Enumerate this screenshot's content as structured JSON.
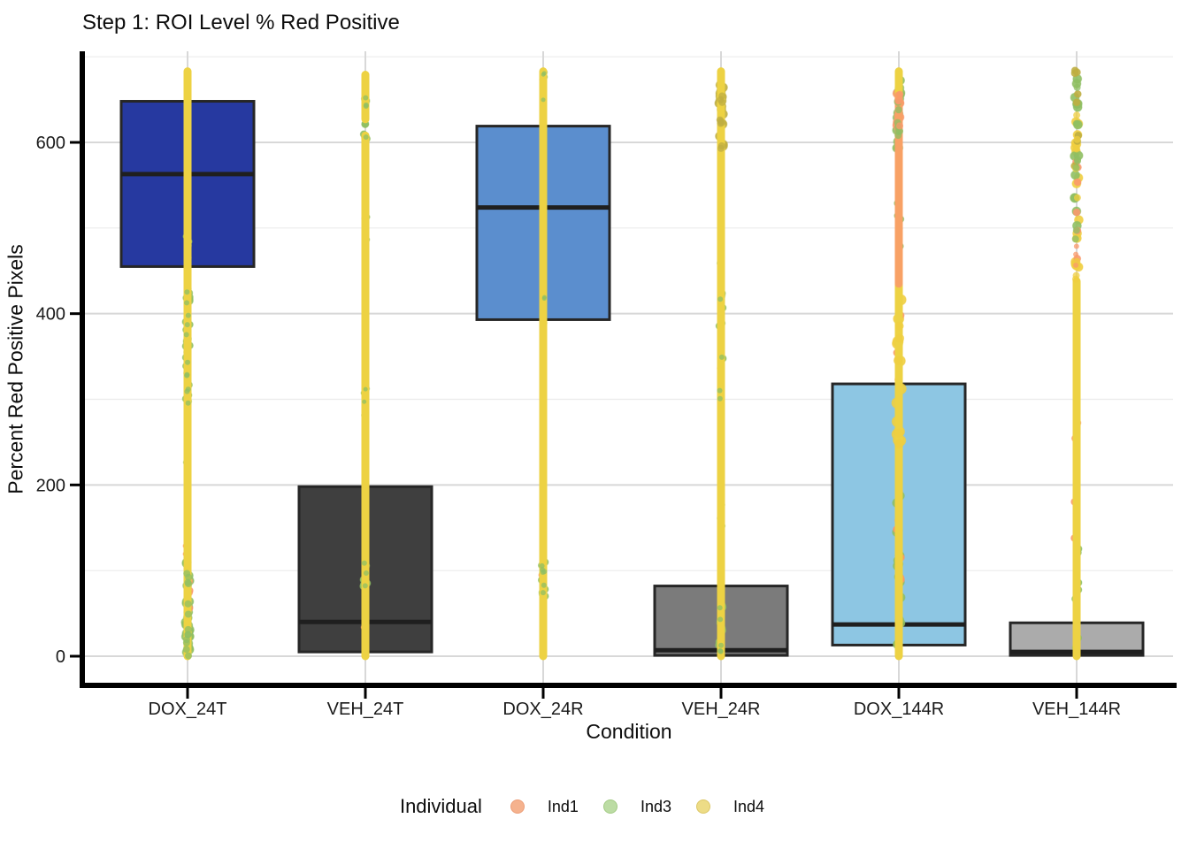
{
  "window": {
    "title": "Step 1: ROI Level % Red Positive"
  },
  "chart_data": {
    "type": "boxplot_jitter",
    "title": "Step 1: ROI Level % Red Positive",
    "xlabel": "Condition",
    "ylabel": "Percent Red Positive Pixels",
    "categories": [
      "DOX_24T",
      "VEH_24T",
      "DOX_24R",
      "VEH_24R",
      "DOX_144R",
      "VEH_144R"
    ],
    "y_ticks_major": [
      0,
      200,
      400,
      600
    ],
    "y_ticks_minor": [
      100,
      300,
      500,
      700
    ],
    "ylim": [
      0,
      706
    ],
    "grid": true,
    "boxes": [
      {
        "category": "DOX_24T",
        "q1": 455,
        "median": 563,
        "q3": 648,
        "fill": "#2639A0"
      },
      {
        "category": "VEH_24T",
        "q1": 5,
        "median": 40,
        "q3": 198,
        "fill": "#3F3F3F"
      },
      {
        "category": "DOX_24R",
        "q1": 393,
        "median": 524,
        "q3": 619,
        "fill": "#5B8ECE"
      },
      {
        "category": "VEH_24R",
        "q1": 1,
        "median": 7,
        "q3": 82,
        "fill": "#7B7B7B"
      },
      {
        "category": "DOX_144R",
        "q1": 13,
        "median": 37,
        "q3": 318,
        "fill": "#8DC6E3"
      },
      {
        "category": "VEH_144R",
        "q1": 1,
        "median": 5,
        "q3": 39,
        "fill": "#ABABAB"
      }
    ],
    "point_colors": {
      "yellow": "#EDD243",
      "yellow2": "#EFCE3F",
      "green": "#8FBF63",
      "orange": "#F9996B",
      "olive": "#BFAE41"
    },
    "jitter": {
      "strip_width": 9,
      "point_range": [
        0,
        683
      ],
      "categories": [
        {
          "name": "DOX_24T",
          "segments": [
            {
              "lo": 0,
              "hi": 683,
              "c": "yellow"
            }
          ],
          "extra": [
            {
              "n": 22,
              "lo": 295,
              "hi": 430,
              "c": "green",
              "r": 4
            },
            {
              "n": 16,
              "lo": 0,
              "hi": 50,
              "c": "green",
              "r": 5
            },
            {
              "n": 10,
              "lo": 50,
              "hi": 110,
              "c": "green",
              "r": 5
            },
            {
              "n": 5,
              "lo": 55,
              "hi": 105,
              "c": "orange",
              "r": 4
            },
            {
              "n": 3,
              "lo": 115,
              "hi": 130,
              "c": "orange",
              "r": 3
            },
            {
              "n": 6,
              "lo": 440,
              "hi": 560,
              "c": "green",
              "r": 3
            },
            {
              "n": 4,
              "lo": 210,
              "hi": 240,
              "c": "green",
              "r": 3
            }
          ]
        },
        {
          "name": "VEH_24T",
          "segments": [
            {
              "lo": 0,
              "hi": 608,
              "c": "yellow"
            },
            {
              "lo": 627,
              "hi": 679,
              "c": "yellow"
            }
          ],
          "extra": [
            {
              "n": 8,
              "lo": 600,
              "hi": 655,
              "c": "green",
              "r": 4
            },
            {
              "n": 6,
              "lo": 75,
              "hi": 110,
              "c": "green",
              "r": 4
            },
            {
              "n": 3,
              "lo": 270,
              "hi": 330,
              "c": "green",
              "r": 3
            },
            {
              "n": 2,
              "lo": 25,
              "hi": 45,
              "c": "orange",
              "r": 3
            },
            {
              "n": 3,
              "lo": 440,
              "hi": 520,
              "c": "green",
              "r": 3
            }
          ]
        },
        {
          "name": "DOX_24R",
          "segments": [
            {
              "lo": 0,
              "hi": 683,
              "c": "yellow"
            }
          ],
          "extra": [
            {
              "n": 12,
              "lo": 70,
              "hi": 115,
              "c": "green",
              "r": 4
            },
            {
              "n": 5,
              "lo": 648,
              "hi": 683,
              "c": "green",
              "r": 3
            },
            {
              "n": 4,
              "lo": 380,
              "hi": 430,
              "c": "green",
              "r": 3
            },
            {
              "n": 2,
              "lo": 88,
              "hi": 100,
              "c": "orange",
              "r": 3
            }
          ]
        },
        {
          "name": "VEH_24R",
          "segments": [
            {
              "lo": 0,
              "hi": 683,
              "c": "yellow"
            }
          ],
          "extra": [
            {
              "n": 18,
              "lo": 585,
              "hi": 683,
              "c": "olive",
              "r": 5
            },
            {
              "n": 7,
              "lo": 300,
              "hi": 460,
              "c": "green",
              "r": 4
            },
            {
              "n": 9,
              "lo": 0,
              "hi": 60,
              "c": "green",
              "r": 4
            },
            {
              "n": 3,
              "lo": 150,
              "hi": 210,
              "c": "green",
              "r": 3
            },
            {
              "n": 2,
              "lo": 330,
              "hi": 350,
              "c": "orange",
              "r": 3
            }
          ]
        },
        {
          "name": "DOX_144R",
          "segments": [
            {
              "lo": 0,
              "hi": 683,
              "c": "yellow"
            },
            {
              "lo": 435,
              "hi": 655,
              "c": "orange"
            }
          ],
          "extra": [
            {
              "n": 14,
              "lo": 590,
              "hi": 683,
              "c": "green",
              "r": 5
            },
            {
              "n": 8,
              "lo": 615,
              "hi": 660,
              "c": "orange",
              "r": 5
            },
            {
              "n": 12,
              "lo": 240,
              "hi": 420,
              "c": "yellow2",
              "r": 6
            },
            {
              "n": 16,
              "lo": 0,
              "hi": 215,
              "c": "green",
              "r": 5
            },
            {
              "n": 9,
              "lo": 80,
              "hi": 230,
              "c": "orange",
              "r": 4
            },
            {
              "n": 5,
              "lo": 430,
              "hi": 530,
              "c": "green",
              "r": 4
            },
            {
              "n": 4,
              "lo": 300,
              "hi": 420,
              "c": "orange",
              "r": 4
            }
          ]
        },
        {
          "name": "VEH_144R",
          "segments": [
            {
              "lo": 0,
              "hi": 438,
              "c": "yellow"
            }
          ],
          "extra": [
            {
              "n": 16,
              "lo": 440,
              "hi": 685,
              "c": "yellow2",
              "r": 5
            },
            {
              "n": 14,
              "lo": 430,
              "hi": 685,
              "c": "green",
              "r": 5
            },
            {
              "n": 6,
              "lo": 450,
              "hi": 660,
              "c": "orange",
              "r": 4
            },
            {
              "n": 10,
              "lo": 0,
              "hi": 210,
              "c": "green",
              "r": 4
            },
            {
              "n": 4,
              "lo": 60,
              "hi": 420,
              "c": "orange",
              "r": 4
            },
            {
              "n": 8,
              "lo": 560,
              "hi": 685,
              "c": "olive",
              "r": 4
            }
          ]
        }
      ]
    },
    "legend": {
      "title": "Individual",
      "position": "bottom",
      "items": [
        {
          "label": "Ind1",
          "color": "#F5B28E",
          "stroke": "#EC9E79"
        },
        {
          "label": "Ind3",
          "color": "#BCDCA4",
          "stroke": "#A3CB85"
        },
        {
          "label": "Ind4",
          "color": "#EDDC86",
          "stroke": "#DCC766"
        }
      ]
    },
    "style": {
      "grid_major": "#D8D8D8",
      "grid_minor": "#EBEBEB",
      "axis_line": "#000000",
      "box_border": "#262626",
      "median_line": "#1F1F1F",
      "tick_label_color": "#1a1a1a"
    }
  }
}
